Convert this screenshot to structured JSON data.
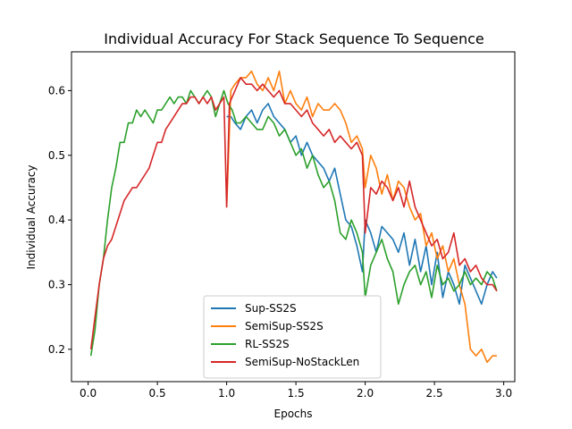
{
  "chart_data": {
    "type": "line",
    "title": "Individual Accuracy For Stack Sequence To Sequence",
    "xlabel": "Epochs",
    "ylabel": "Individual Accuracy",
    "xlim": [
      -0.12,
      3.08
    ],
    "ylim": [
      0.15,
      0.66
    ],
    "xticks": [
      0.0,
      0.5,
      1.0,
      1.5,
      2.0,
      2.5,
      3.0
    ],
    "xtick_labels": [
      "0.0",
      "0.5",
      "1.0",
      "1.5",
      "2.0",
      "2.5",
      "3.0"
    ],
    "yticks": [
      0.2,
      0.3,
      0.4,
      0.5,
      0.6
    ],
    "ytick_labels": [
      "0.2",
      "0.3",
      "0.4",
      "0.5",
      "0.6"
    ],
    "grid": false,
    "legend_position": "bottom-center",
    "series": [
      {
        "name": "Sup-SS2S",
        "color": "#1f77b4",
        "x": [
          1.0,
          1.03,
          1.06,
          1.1,
          1.14,
          1.18,
          1.22,
          1.26,
          1.3,
          1.34,
          1.38,
          1.42,
          1.46,
          1.5,
          1.54,
          1.58,
          1.62,
          1.66,
          1.7,
          1.74,
          1.78,
          1.82,
          1.86,
          1.9,
          1.94,
          1.98,
          2.0,
          2.04,
          2.08,
          2.12,
          2.16,
          2.2,
          2.24,
          2.28,
          2.32,
          2.36,
          2.4,
          2.44,
          2.48,
          2.52,
          2.56,
          2.6,
          2.64,
          2.68,
          2.72,
          2.76,
          2.8,
          2.84,
          2.88,
          2.92,
          2.95
        ],
        "y": [
          0.56,
          0.56,
          0.55,
          0.54,
          0.56,
          0.57,
          0.55,
          0.57,
          0.58,
          0.56,
          0.55,
          0.54,
          0.52,
          0.53,
          0.5,
          0.52,
          0.5,
          0.49,
          0.48,
          0.46,
          0.48,
          0.44,
          0.4,
          0.39,
          0.36,
          0.32,
          0.4,
          0.38,
          0.35,
          0.39,
          0.38,
          0.37,
          0.35,
          0.38,
          0.33,
          0.37,
          0.32,
          0.36,
          0.3,
          0.35,
          0.28,
          0.32,
          0.3,
          0.27,
          0.33,
          0.31,
          0.29,
          0.27,
          0.3,
          0.32,
          0.31
        ]
      },
      {
        "name": "SemiSup-SS2S",
        "color": "#ff7f0e",
        "x": [
          1.0,
          1.03,
          1.06,
          1.1,
          1.14,
          1.18,
          1.22,
          1.26,
          1.3,
          1.34,
          1.38,
          1.42,
          1.46,
          1.5,
          1.54,
          1.58,
          1.62,
          1.66,
          1.7,
          1.74,
          1.78,
          1.82,
          1.86,
          1.9,
          1.94,
          1.98,
          2.0,
          2.04,
          2.08,
          2.12,
          2.16,
          2.2,
          2.24,
          2.28,
          2.32,
          2.36,
          2.4,
          2.44,
          2.48,
          2.52,
          2.56,
          2.6,
          2.64,
          2.68,
          2.72,
          2.76,
          2.8,
          2.84,
          2.88,
          2.92,
          2.95
        ],
        "y": [
          0.42,
          0.6,
          0.61,
          0.62,
          0.62,
          0.63,
          0.61,
          0.6,
          0.62,
          0.6,
          0.63,
          0.58,
          0.6,
          0.58,
          0.57,
          0.59,
          0.56,
          0.58,
          0.57,
          0.57,
          0.58,
          0.57,
          0.55,
          0.52,
          0.53,
          0.51,
          0.45,
          0.5,
          0.48,
          0.44,
          0.47,
          0.43,
          0.46,
          0.45,
          0.42,
          0.4,
          0.41,
          0.36,
          0.38,
          0.34,
          0.36,
          0.32,
          0.34,
          0.3,
          0.27,
          0.2,
          0.19,
          0.2,
          0.18,
          0.19,
          0.19
        ]
      },
      {
        "name": "RL-SS2S",
        "color": "#2ca02c",
        "x": [
          0.02,
          0.05,
          0.08,
          0.11,
          0.14,
          0.17,
          0.2,
          0.23,
          0.26,
          0.29,
          0.32,
          0.35,
          0.38,
          0.41,
          0.44,
          0.47,
          0.5,
          0.53,
          0.56,
          0.59,
          0.62,
          0.65,
          0.68,
          0.71,
          0.74,
          0.77,
          0.8,
          0.83,
          0.86,
          0.89,
          0.92,
          0.95,
          0.98,
          1.01,
          1.04,
          1.07,
          1.1,
          1.14,
          1.18,
          1.22,
          1.26,
          1.3,
          1.34,
          1.38,
          1.42,
          1.46,
          1.5,
          1.54,
          1.58,
          1.62,
          1.66,
          1.7,
          1.74,
          1.78,
          1.82,
          1.86,
          1.9,
          1.94,
          1.98,
          2.0,
          2.04,
          2.08,
          2.12,
          2.16,
          2.2,
          2.24,
          2.28,
          2.32,
          2.36,
          2.4,
          2.44,
          2.48,
          2.52,
          2.56,
          2.6,
          2.64,
          2.68,
          2.72,
          2.76,
          2.8,
          2.84,
          2.88,
          2.92,
          2.95
        ],
        "y": [
          0.19,
          0.23,
          0.3,
          0.34,
          0.4,
          0.45,
          0.48,
          0.52,
          0.52,
          0.55,
          0.55,
          0.57,
          0.56,
          0.57,
          0.56,
          0.55,
          0.57,
          0.57,
          0.58,
          0.59,
          0.58,
          0.59,
          0.59,
          0.58,
          0.6,
          0.59,
          0.58,
          0.59,
          0.6,
          0.59,
          0.56,
          0.58,
          0.6,
          0.58,
          0.57,
          0.55,
          0.55,
          0.56,
          0.55,
          0.54,
          0.54,
          0.56,
          0.55,
          0.53,
          0.54,
          0.52,
          0.5,
          0.51,
          0.48,
          0.5,
          0.47,
          0.45,
          0.46,
          0.43,
          0.38,
          0.37,
          0.4,
          0.38,
          0.35,
          0.28,
          0.33,
          0.35,
          0.37,
          0.34,
          0.32,
          0.27,
          0.3,
          0.32,
          0.33,
          0.3,
          0.32,
          0.28,
          0.33,
          0.3,
          0.31,
          0.29,
          0.3,
          0.32,
          0.3,
          0.31,
          0.3,
          0.32,
          0.31,
          0.29
        ]
      },
      {
        "name": "SemiSup-NoStackLen",
        "color": "#d62728",
        "x": [
          0.02,
          0.05,
          0.08,
          0.11,
          0.14,
          0.17,
          0.2,
          0.23,
          0.26,
          0.29,
          0.32,
          0.35,
          0.38,
          0.41,
          0.44,
          0.47,
          0.5,
          0.53,
          0.56,
          0.59,
          0.62,
          0.65,
          0.68,
          0.71,
          0.74,
          0.77,
          0.8,
          0.83,
          0.86,
          0.89,
          0.92,
          0.95,
          0.98,
          1.0,
          1.02,
          1.04,
          1.06,
          1.1,
          1.14,
          1.18,
          1.22,
          1.26,
          1.3,
          1.34,
          1.38,
          1.42,
          1.46,
          1.5,
          1.54,
          1.58,
          1.62,
          1.66,
          1.7,
          1.74,
          1.78,
          1.82,
          1.86,
          1.9,
          1.94,
          1.98,
          2.0,
          2.04,
          2.08,
          2.12,
          2.16,
          2.2,
          2.24,
          2.28,
          2.32,
          2.36,
          2.4,
          2.44,
          2.48,
          2.52,
          2.56,
          2.6,
          2.64,
          2.68,
          2.72,
          2.76,
          2.8,
          2.84,
          2.88,
          2.92,
          2.95
        ],
        "y": [
          0.2,
          0.25,
          0.3,
          0.34,
          0.36,
          0.37,
          0.39,
          0.41,
          0.43,
          0.44,
          0.45,
          0.45,
          0.46,
          0.47,
          0.48,
          0.5,
          0.52,
          0.52,
          0.54,
          0.55,
          0.56,
          0.57,
          0.58,
          0.58,
          0.59,
          0.59,
          0.58,
          0.59,
          0.58,
          0.59,
          0.57,
          0.58,
          0.59,
          0.42,
          0.58,
          0.59,
          0.6,
          0.62,
          0.61,
          0.61,
          0.6,
          0.61,
          0.6,
          0.59,
          0.6,
          0.58,
          0.58,
          0.57,
          0.56,
          0.57,
          0.55,
          0.54,
          0.53,
          0.54,
          0.52,
          0.53,
          0.52,
          0.51,
          0.52,
          0.5,
          0.38,
          0.45,
          0.44,
          0.46,
          0.45,
          0.43,
          0.45,
          0.42,
          0.46,
          0.42,
          0.4,
          0.38,
          0.36,
          0.37,
          0.34,
          0.35,
          0.38,
          0.33,
          0.34,
          0.32,
          0.33,
          0.31,
          0.3,
          0.3,
          0.29
        ]
      }
    ]
  }
}
